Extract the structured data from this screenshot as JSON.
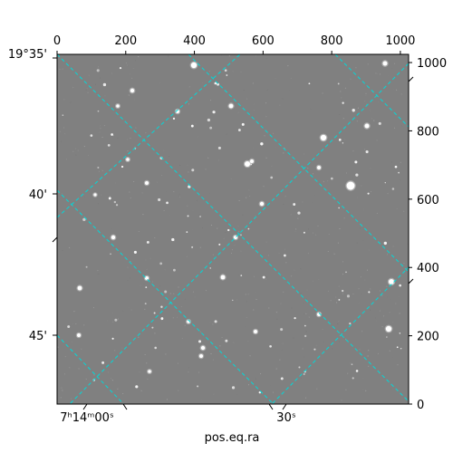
{
  "chart_data": {
    "type": "sky-image",
    "xlabel": "pos.eq.ra",
    "pixel_axes": {
      "bottom_ticks": [
        "0",
        "200",
        "400",
        "600",
        "800",
        "1000"
      ],
      "right_ticks": [
        "0",
        "200",
        "400",
        "600",
        "800",
        "1000"
      ],
      "x_values": [
        0,
        200,
        400,
        600,
        800,
        1000
      ],
      "y_values": [
        0,
        200,
        400,
        600,
        800,
        1000
      ],
      "range": [
        0,
        1024
      ]
    },
    "ra_ticks": [
      {
        "label": "7ʰ14ᵐ00ˢ"
      },
      {
        "label": "30ˢ"
      }
    ],
    "dec_ticks": [
      {
        "label": "19°35'"
      },
      {
        "label": "40'"
      },
      {
        "label": "45'"
      }
    ],
    "grid_color": "#00d8d8",
    "background_color": "#808080"
  }
}
